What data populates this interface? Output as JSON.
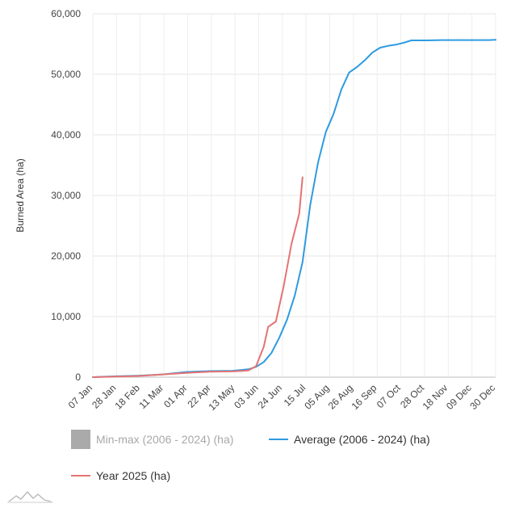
{
  "chart_data": {
    "type": "line",
    "title": "",
    "xlabel": "",
    "ylabel": "Burned Area (ha)",
    "xlim": [
      0,
      363
    ],
    "ylim": [
      0,
      60000
    ],
    "y_ticks": [
      0,
      10000,
      20000,
      30000,
      40000,
      50000,
      60000
    ],
    "y_tick_labels": [
      "0",
      "10,000",
      "20,000",
      "30,000",
      "40,000",
      "50,000",
      "60,000"
    ],
    "x_tick_labels": [
      "07 Jan",
      "28 Jan",
      "18 Feb",
      "11 Mar",
      "01 Apr",
      "22 Apr",
      "13 May",
      "03 Jun",
      "24 Jun",
      "15 Jul",
      "05 Aug",
      "26 Aug",
      "16 Sep",
      "07 Oct",
      "28 Oct",
      "18 Nov",
      "09 Dec",
      "30 Dec"
    ],
    "grid": true,
    "legend_position": "bottom",
    "legend": [
      {
        "label": "Min-max (2006 - 2024) (ha)",
        "color": "#aaaaaa",
        "kind": "box",
        "muted": true
      },
      {
        "label": "Average (2006 - 2024) (ha)",
        "color": "#2e9be0",
        "kind": "line"
      },
      {
        "label": "Year 2025 (ha)",
        "color": "#e57373",
        "kind": "line"
      }
    ],
    "series": [
      {
        "name": "Average (2006 - 2024) (ha)",
        "color": "#2e9be0",
        "x": [
          0,
          21,
          42,
          63,
          84,
          105,
          126,
          140,
          147,
          154,
          161,
          168,
          175,
          182,
          189,
          196,
          203,
          210,
          217,
          224,
          231,
          238,
          245,
          252,
          259,
          266,
          273,
          280,
          287,
          294,
          301,
          315,
          336,
          357,
          363
        ],
        "y": [
          0,
          150,
          250,
          450,
          850,
          1000,
          1050,
          1300,
          1700,
          2500,
          4000,
          6500,
          9500,
          13500,
          19000,
          28500,
          35500,
          40500,
          43500,
          47500,
          50300,
          51200,
          52300,
          53600,
          54400,
          54700,
          54900,
          55200,
          55600,
          55600,
          55600,
          55650,
          55650,
          55650,
          55700
        ]
      },
      {
        "name": "Year 2025 (ha)",
        "color": "#e57373",
        "x": [
          0,
          21,
          42,
          63,
          84,
          105,
          126,
          140,
          147,
          154,
          158,
          165,
          172,
          179,
          186
        ],
        "y": [
          0,
          100,
          200,
          450,
          700,
          900,
          950,
          1100,
          1800,
          5000,
          8300,
          9200,
          15000,
          22000,
          27000
        ]
      }
    ],
    "series_end": {
      "x": 189,
      "y": 33000
    }
  }
}
